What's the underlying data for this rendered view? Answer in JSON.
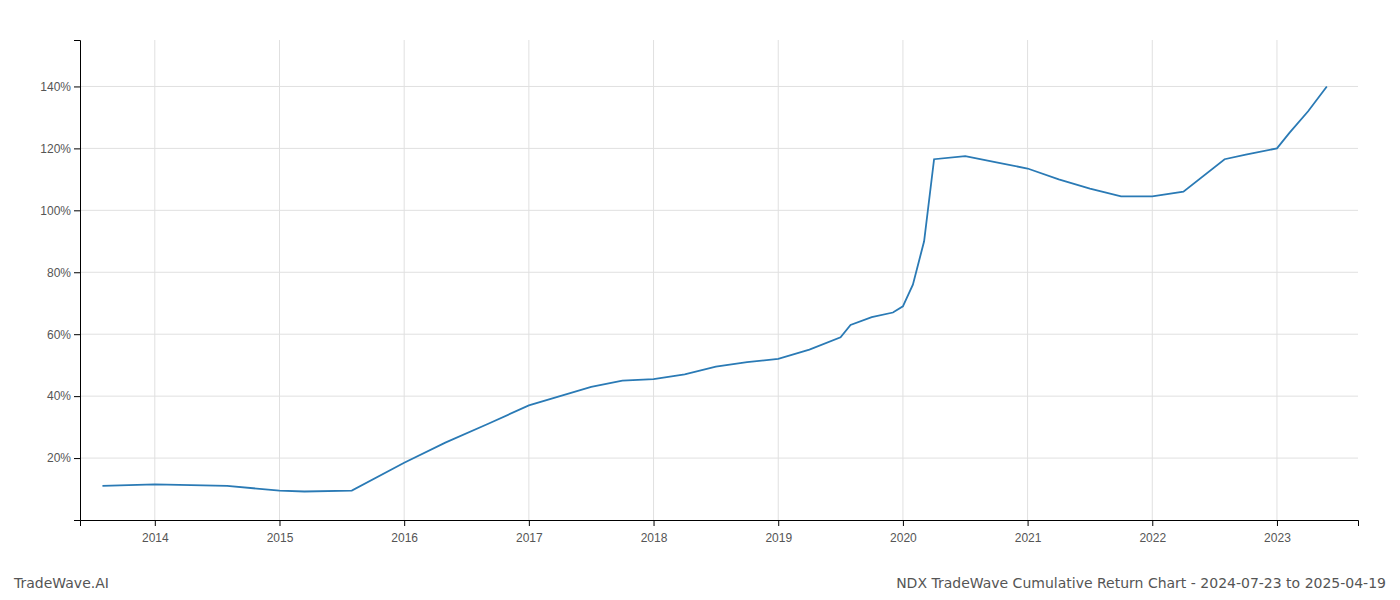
{
  "chart_data": {
    "type": "line",
    "title": "NDX TradeWave Cumulative Return Chart - 2024-07-23 to 2025-04-19",
    "annotations": [
      "TradeWave.AI"
    ],
    "color": "#2a7ab5",
    "x": [
      2013.58,
      2014.0,
      2014.58,
      2015.0,
      2015.2,
      2015.58,
      2016.0,
      2016.33,
      2016.67,
      2017.0,
      2017.25,
      2017.5,
      2017.75,
      2018.0,
      2018.25,
      2018.5,
      2018.75,
      2019.0,
      2019.25,
      2019.5,
      2019.58,
      2019.75,
      2019.92,
      2020.0,
      2020.08,
      2020.17,
      2020.25,
      2020.5,
      2020.75,
      2021.0,
      2021.25,
      2021.5,
      2021.75,
      2022.0,
      2022.25,
      2022.58,
      2022.75,
      2023.0,
      2023.1,
      2023.25,
      2023.4
    ],
    "values": [
      11.0,
      11.5,
      11.0,
      9.5,
      9.2,
      9.5,
      18.5,
      25.0,
      31.0,
      37.0,
      40.0,
      43.0,
      45.0,
      45.5,
      47.0,
      49.5,
      51.0,
      52.0,
      55.0,
      59.0,
      63.0,
      65.5,
      67.0,
      69.0,
      76.0,
      90.0,
      116.5,
      117.5,
      115.5,
      113.5,
      110.0,
      107.0,
      104.5,
      104.5,
      106.0,
      116.5,
      118.0,
      120.0,
      125.0,
      132.0,
      140.0
    ],
    "xlim": [
      2013.4,
      2023.65
    ],
    "ylim": [
      0,
      155
    ],
    "xticks": [
      2014,
      2015,
      2016,
      2017,
      2018,
      2019,
      2020,
      2021,
      2022,
      2023
    ],
    "yticks": [
      {
        "value": 20,
        "label": "20%"
      },
      {
        "value": 40,
        "label": "40%"
      },
      {
        "value": 60,
        "label": "60%"
      },
      {
        "value": 80,
        "label": "80%"
      },
      {
        "value": 100,
        "label": "100%"
      },
      {
        "value": 120,
        "label": "120%"
      },
      {
        "value": 140,
        "label": "140%"
      }
    ],
    "grid": true
  }
}
